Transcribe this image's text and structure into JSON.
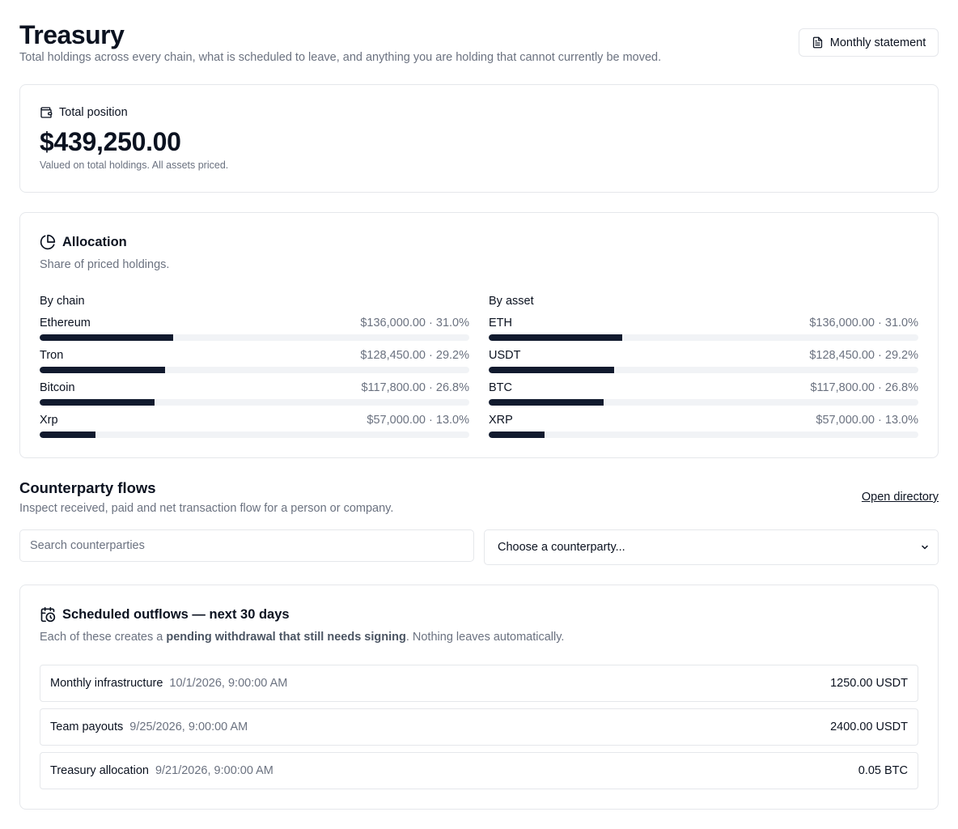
{
  "header": {
    "title": "Treasury",
    "subtitle": "Total holdings across every chain, what is scheduled to leave, and anything you are holding that cannot currently be moved.",
    "statement_button": "Monthly statement"
  },
  "total": {
    "label": "Total position",
    "value": "$439,250.00",
    "note": "Valued on total holdings. All assets priced."
  },
  "allocation": {
    "title": "Allocation",
    "subtitle": "Share of priced holdings.",
    "by_chain": {
      "title": "By chain",
      "rows": [
        {
          "name": "Ethereum",
          "value": "$136,000.00 · 31.0%",
          "pct": 31.0
        },
        {
          "name": "Tron",
          "value": "$128,450.00 · 29.2%",
          "pct": 29.2
        },
        {
          "name": "Bitcoin",
          "value": "$117,800.00 · 26.8%",
          "pct": 26.8
        },
        {
          "name": "Xrp",
          "value": "$57,000.00 · 13.0%",
          "pct": 13.0
        }
      ]
    },
    "by_asset": {
      "title": "By asset",
      "rows": [
        {
          "name": "ETH",
          "value": "$136,000.00 · 31.0%",
          "pct": 31.0
        },
        {
          "name": "USDT",
          "value": "$128,450.00 · 29.2%",
          "pct": 29.2
        },
        {
          "name": "BTC",
          "value": "$117,800.00 · 26.8%",
          "pct": 26.8
        },
        {
          "name": "XRP",
          "value": "$57,000.00 · 13.0%",
          "pct": 13.0
        }
      ]
    }
  },
  "counterparty": {
    "title": "Counterparty flows",
    "subtitle": "Inspect received, paid and net transaction flow for a person or company.",
    "link": "Open directory",
    "search_placeholder": "Search counterparties",
    "select_value": "Choose a counterparty..."
  },
  "scheduled": {
    "title": "Scheduled outflows — next 30 days",
    "sub_before": "Each of these creates a ",
    "sub_bold": "pending withdrawal that still needs signing",
    "sub_after": ". Nothing leaves automatically.",
    "rows": [
      {
        "name": "Monthly infrastructure",
        "date": "10/1/2026, 9:00:00 AM",
        "amount": "1250.00 USDT"
      },
      {
        "name": "Team payouts",
        "date": "9/25/2026, 9:00:00 AM",
        "amount": "2400.00 USDT"
      },
      {
        "name": "Treasury allocation",
        "date": "9/21/2026, 9:00:00 AM",
        "amount": "0.05 BTC"
      }
    ]
  },
  "icons": {
    "statement": "file-text-icon",
    "wallet": "wallet-icon",
    "pie": "pie-chart-icon",
    "calendar": "calendar-clock-icon",
    "chevron": "chevron-down-icon"
  }
}
